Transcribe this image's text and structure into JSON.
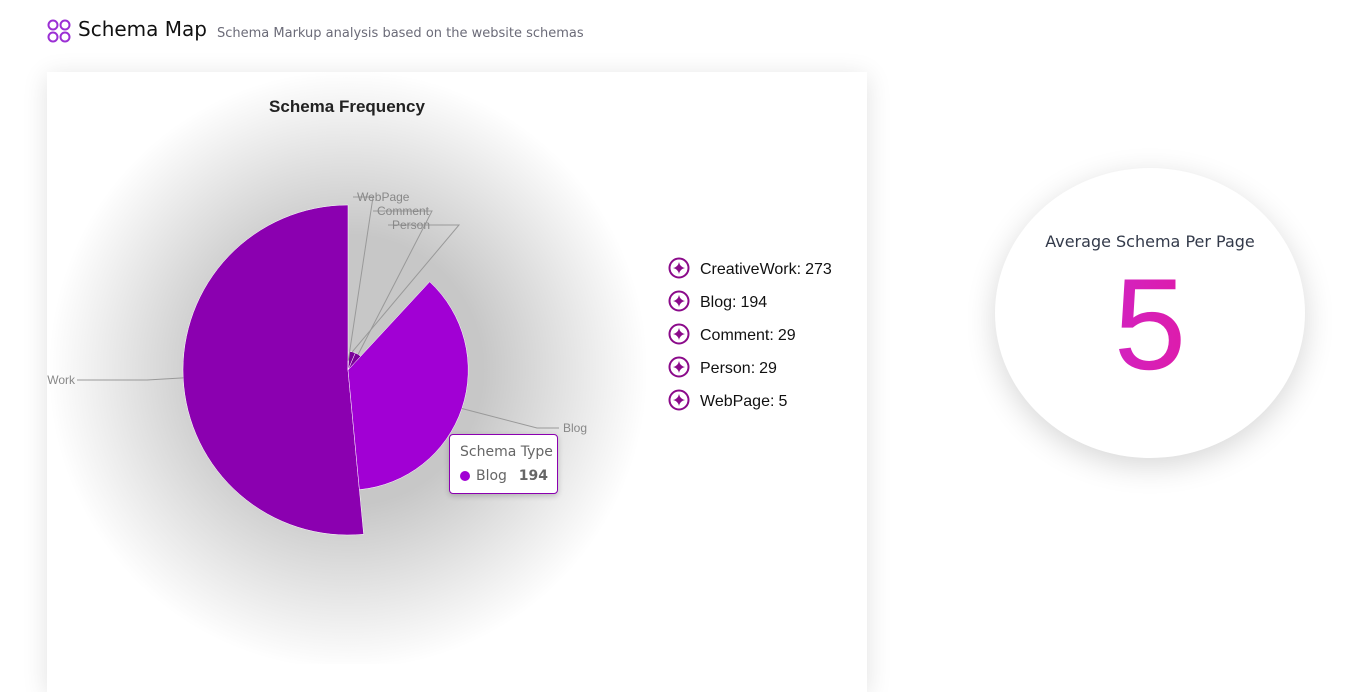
{
  "header": {
    "title": "Schema Map",
    "subtitle": "Schema Markup analysis based on the website schemas"
  },
  "chart_data": {
    "type": "pie",
    "title": "Schema Frequency",
    "categories": [
      "CreativeWork",
      "Blog",
      "Comment",
      "Person",
      "WebPage"
    ],
    "values": [
      273,
      194,
      29,
      29,
      5
    ],
    "colors": [
      "#8b00b0",
      "#a100d4",
      "#7a0099",
      "#7a0099",
      "#7a0099"
    ],
    "label_separator": ":"
  },
  "tooltip": {
    "title": "Schema Type"
  },
  "stat": {
    "label": "Average Schema Per Page",
    "value": 5
  }
}
